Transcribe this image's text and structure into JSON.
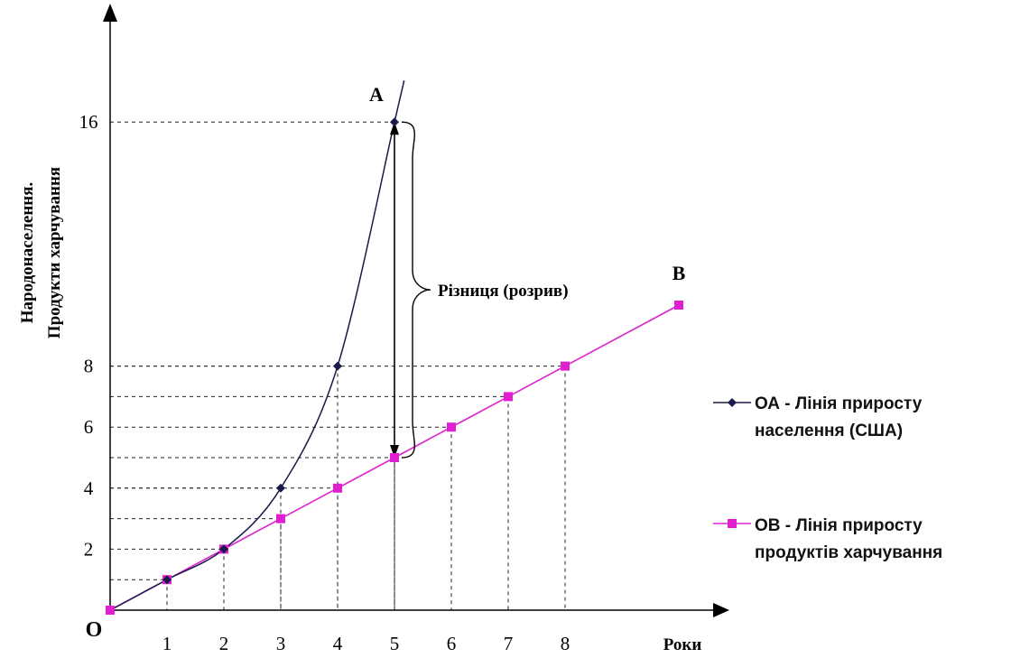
{
  "chart_data": {
    "type": "line",
    "ylabel_line1": "Народонаселення.",
    "ylabel_line2": "Продукти харчування",
    "xlabel": "Роки",
    "origin_label": "O",
    "x_ticks": [
      "1",
      "2",
      "3",
      "4",
      "5",
      "6",
      "7",
      "8"
    ],
    "y_ticks": [
      "2",
      "4",
      "6",
      "8",
      "16"
    ],
    "xlim": [
      0,
      9.7
    ],
    "ylim": [
      0,
      19.5
    ],
    "series": [
      {
        "key": "oa",
        "color": "#1a1a4a",
        "marker": "diamond",
        "end_label": "A",
        "x": [
          0,
          1,
          2,
          3,
          4,
          5
        ],
        "y": [
          0,
          1,
          2,
          4,
          8,
          16
        ]
      },
      {
        "key": "ob",
        "color": "#e020d0",
        "marker": "square",
        "end_label": "B",
        "x": [
          0,
          1,
          2,
          3,
          4,
          5,
          6,
          7,
          8,
          10
        ],
        "y": [
          0,
          1,
          2,
          3,
          4,
          5,
          6,
          7,
          8,
          10
        ]
      }
    ],
    "annotation": {
      "text": "Різниця (розрив)",
      "x": 5,
      "y_top": 16,
      "y_bottom": 5
    }
  },
  "legend": {
    "oa_line1": "ОА - Лінія приросту",
    "oa_line2": "населення (США)",
    "ob_line1": "ОВ - Лінія приросту",
    "ob_line2": "продуктів харчування"
  }
}
